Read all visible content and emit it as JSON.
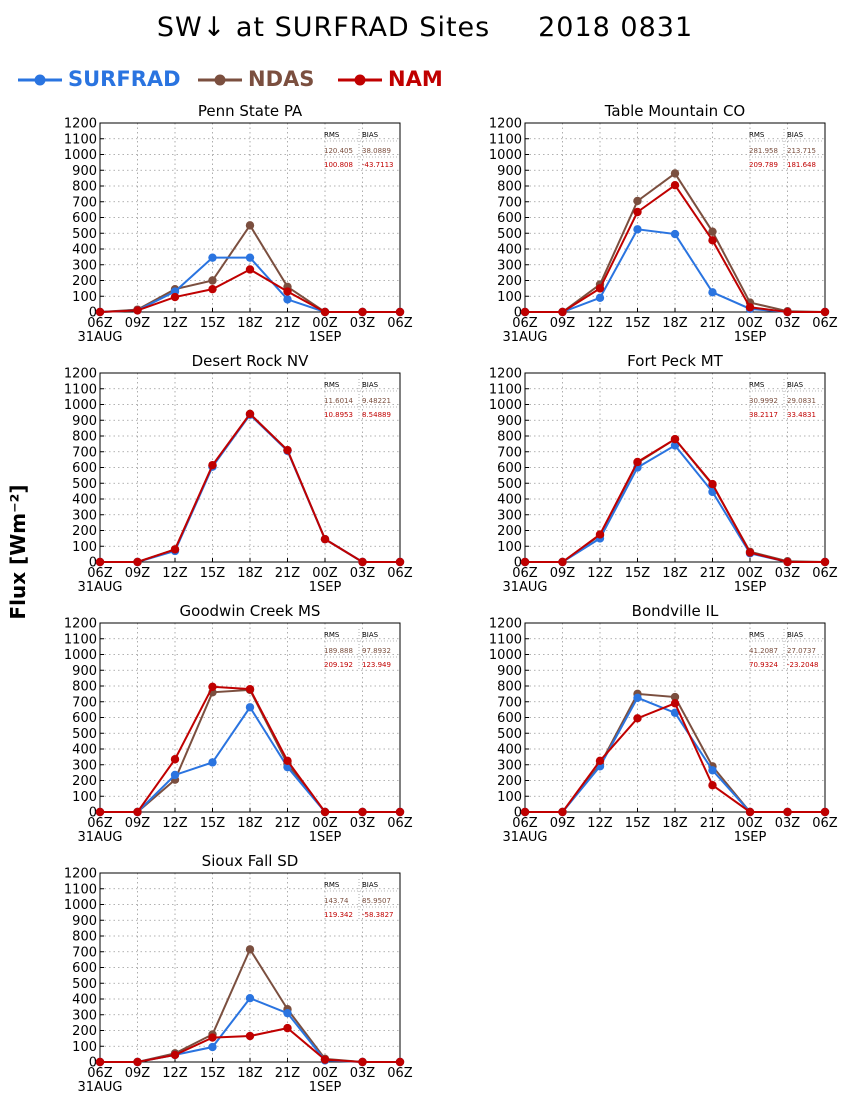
{
  "header": {
    "title": "SW↓ at SURFRAD Sites     2018 0831"
  },
  "legend": [
    {
      "label": "SURFRAD",
      "color": "#2a74e0"
    },
    {
      "label": "NDAS",
      "color": "#7b4f3f"
    },
    {
      "label": "NAM",
      "color": "#c00000"
    }
  ],
  "y_axis_label": "Flux [Wm⁻²]",
  "stats_headers": {
    "rms": "RMS",
    "bias": "BIAS"
  },
  "chart_data": [
    {
      "type": "line",
      "title": "Penn State PA",
      "x": [
        "06Z",
        "09Z",
        "12Z",
        "15Z",
        "18Z",
        "21Z",
        "00Z",
        "03Z",
        "06Z"
      ],
      "x_sublabels": [
        "31AUG",
        "",
        "",
        "",
        "",
        "",
        "1SEP",
        "",
        ""
      ],
      "ylim": [
        0,
        1200
      ],
      "yticks": [
        0,
        100,
        200,
        300,
        400,
        500,
        600,
        700,
        800,
        900,
        1000,
        1100,
        1200
      ],
      "grid": true,
      "stats": {
        "ndas": {
          "rms": "120.405",
          "bias": "38.0889"
        },
        "nam": {
          "rms": "100.808",
          "bias": "-43.7113"
        }
      },
      "series": [
        {
          "name": "SURFRAD",
          "values": [
            0,
            10,
            130,
            345,
            345,
            80,
            0,
            0,
            0
          ]
        },
        {
          "name": "NDAS",
          "values": [
            0,
            15,
            145,
            200,
            550,
            160,
            0,
            0,
            0
          ]
        },
        {
          "name": "NAM",
          "values": [
            0,
            10,
            95,
            145,
            270,
            130,
            0,
            0,
            0
          ]
        }
      ]
    },
    {
      "type": "line",
      "title": "Table Mountain CO",
      "x": [
        "06Z",
        "09Z",
        "12Z",
        "15Z",
        "18Z",
        "21Z",
        "00Z",
        "03Z",
        "06Z"
      ],
      "x_sublabels": [
        "31AUG",
        "",
        "",
        "",
        "",
        "",
        "1SEP",
        "",
        ""
      ],
      "ylim": [
        0,
        1200
      ],
      "yticks": [
        0,
        100,
        200,
        300,
        400,
        500,
        600,
        700,
        800,
        900,
        1000,
        1100,
        1200
      ],
      "grid": true,
      "stats": {
        "ndas": {
          "rms": "281.958",
          "bias": "213.715"
        },
        "nam": {
          "rms": "209.789",
          "bias": "181.648"
        }
      },
      "series": [
        {
          "name": "SURFRAD",
          "values": [
            0,
            0,
            90,
            525,
            495,
            125,
            20,
            0,
            0
          ]
        },
        {
          "name": "NDAS",
          "values": [
            0,
            0,
            175,
            705,
            880,
            510,
            60,
            5,
            0
          ]
        },
        {
          "name": "NAM",
          "values": [
            0,
            0,
            150,
            635,
            805,
            455,
            30,
            0,
            0
          ]
        }
      ]
    },
    {
      "type": "line",
      "title": "Desert Rock NV",
      "x": [
        "06Z",
        "09Z",
        "12Z",
        "15Z",
        "18Z",
        "21Z",
        "00Z",
        "03Z",
        "06Z"
      ],
      "x_sublabels": [
        "31AUG",
        "",
        "",
        "",
        "",
        "",
        "1SEP",
        "",
        ""
      ],
      "ylim": [
        0,
        1200
      ],
      "yticks": [
        0,
        100,
        200,
        300,
        400,
        500,
        600,
        700,
        800,
        900,
        1000,
        1100,
        1200
      ],
      "grid": true,
      "stats": {
        "ndas": {
          "rms": "11.6014",
          "bias": "9.48221"
        },
        "nam": {
          "rms": "10.8953",
          "bias": "8.54889"
        }
      },
      "series": [
        {
          "name": "SURFRAD",
          "values": [
            0,
            0,
            70,
            605,
            935,
            705,
            145,
            0,
            0
          ]
        },
        {
          "name": "NDAS",
          "values": [
            0,
            0,
            80,
            610,
            940,
            710,
            145,
            0,
            0
          ]
        },
        {
          "name": "NAM",
          "values": [
            0,
            0,
            80,
            615,
            940,
            710,
            145,
            0,
            0
          ]
        }
      ]
    },
    {
      "type": "line",
      "title": "Fort Peck MT",
      "x": [
        "06Z",
        "09Z",
        "12Z",
        "15Z",
        "18Z",
        "21Z",
        "00Z",
        "03Z",
        "06Z"
      ],
      "x_sublabels": [
        "31AUG",
        "",
        "",
        "",
        "",
        "",
        "1SEP",
        "",
        ""
      ],
      "ylim": [
        0,
        1200
      ],
      "yticks": [
        0,
        100,
        200,
        300,
        400,
        500,
        600,
        700,
        800,
        900,
        1000,
        1100,
        1200
      ],
      "grid": true,
      "stats": {
        "ndas": {
          "rms": "30.9992",
          "bias": "29.0831"
        },
        "nam": {
          "rms": "38.2117",
          "bias": "33.4831"
        }
      },
      "series": [
        {
          "name": "SURFRAD",
          "values": [
            0,
            0,
            150,
            600,
            740,
            445,
            55,
            0,
            0
          ]
        },
        {
          "name": "NDAS",
          "values": [
            0,
            0,
            170,
            630,
            780,
            490,
            65,
            5,
            0
          ]
        },
        {
          "name": "NAM",
          "values": [
            0,
            0,
            175,
            635,
            780,
            495,
            60,
            0,
            0
          ]
        }
      ]
    },
    {
      "type": "line",
      "title": "Goodwin Creek MS",
      "x": [
        "06Z",
        "09Z",
        "12Z",
        "15Z",
        "18Z",
        "21Z",
        "00Z",
        "03Z",
        "06Z"
      ],
      "x_sublabels": [
        "31AUG",
        "",
        "",
        "",
        "",
        "",
        "1SEP",
        "",
        ""
      ],
      "ylim": [
        0,
        1200
      ],
      "yticks": [
        0,
        100,
        200,
        300,
        400,
        500,
        600,
        700,
        800,
        900,
        1000,
        1100,
        1200
      ],
      "grid": true,
      "stats": {
        "ndas": {
          "rms": "189.888",
          "bias": "97.8932"
        },
        "nam": {
          "rms": "209.192",
          "bias": "123.949"
        }
      },
      "series": [
        {
          "name": "SURFRAD",
          "values": [
            0,
            0,
            235,
            315,
            665,
            285,
            0,
            0,
            0
          ]
        },
        {
          "name": "NDAS",
          "values": [
            0,
            0,
            205,
            760,
            775,
            305,
            0,
            0,
            0
          ]
        },
        {
          "name": "NAM",
          "values": [
            0,
            0,
            335,
            795,
            780,
            325,
            0,
            0,
            0
          ]
        }
      ]
    },
    {
      "type": "line",
      "title": "Bondville IL",
      "x": [
        "06Z",
        "09Z",
        "12Z",
        "15Z",
        "18Z",
        "21Z",
        "00Z",
        "03Z",
        "06Z"
      ],
      "x_sublabels": [
        "31AUG",
        "",
        "",
        "",
        "",
        "",
        "1SEP",
        "",
        ""
      ],
      "ylim": [
        0,
        1200
      ],
      "yticks": [
        0,
        100,
        200,
        300,
        400,
        500,
        600,
        700,
        800,
        900,
        1000,
        1100,
        1200
      ],
      "grid": true,
      "stats": {
        "ndas": {
          "rms": "41.2087",
          "bias": "27.0737"
        },
        "nam": {
          "rms": "70.9324",
          "bias": "-23.2048"
        }
      },
      "series": [
        {
          "name": "SURFRAD",
          "values": [
            0,
            0,
            290,
            725,
            630,
            265,
            0,
            0,
            0
          ]
        },
        {
          "name": "NDAS",
          "values": [
            0,
            0,
            300,
            750,
            730,
            290,
            0,
            0,
            0
          ]
        },
        {
          "name": "NAM",
          "values": [
            0,
            0,
            325,
            595,
            690,
            170,
            0,
            0,
            0
          ]
        }
      ]
    },
    {
      "type": "line",
      "title": "Sioux Fall SD",
      "x": [
        "06Z",
        "09Z",
        "12Z",
        "15Z",
        "18Z",
        "21Z",
        "00Z",
        "03Z",
        "06Z"
      ],
      "x_sublabels": [
        "31AUG",
        "",
        "",
        "",
        "",
        "",
        "1SEP",
        "",
        ""
      ],
      "ylim": [
        0,
        1200
      ],
      "yticks": [
        0,
        100,
        200,
        300,
        400,
        500,
        600,
        700,
        800,
        900,
        1000,
        1100,
        1200
      ],
      "grid": true,
      "stats": {
        "ndas": {
          "rms": "143.74",
          "bias": "85.9507"
        },
        "nam": {
          "rms": "119.342",
          "bias": "-58.3827"
        }
      },
      "series": [
        {
          "name": "SURFRAD",
          "values": [
            0,
            0,
            45,
            95,
            405,
            310,
            10,
            0,
            0
          ]
        },
        {
          "name": "NDAS",
          "values": [
            0,
            0,
            55,
            175,
            715,
            335,
            20,
            0,
            0
          ]
        },
        {
          "name": "NAM",
          "values": [
            0,
            0,
            45,
            155,
            165,
            215,
            15,
            0,
            0
          ]
        }
      ]
    }
  ]
}
